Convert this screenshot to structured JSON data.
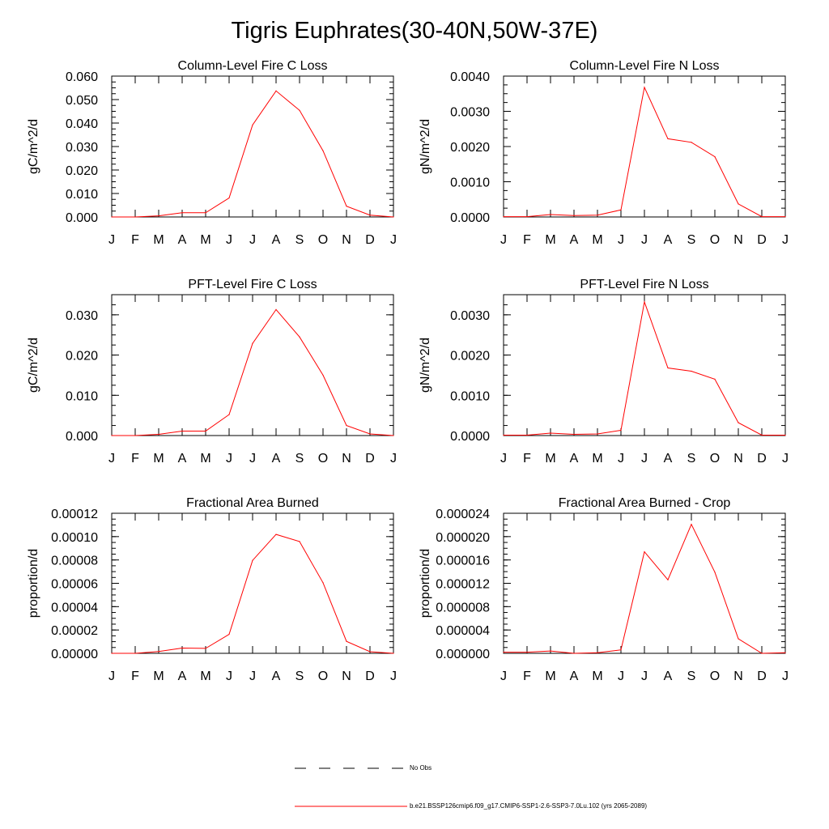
{
  "title": "Tigris Euphrates(30-40N,50W-37E)",
  "colors": {
    "series": "#ff0000",
    "axis": "#000000",
    "obs": "#000000"
  },
  "legend": {
    "entries": [
      {
        "label": "No Obs",
        "style": "dashed"
      },
      {
        "label": "b.e21.BSSP126cmip6.f09_g17.CMIP6-SSP1-2.6-SSP3-7.0Lu.102 (yrs 2065-2089)",
        "style": "solid"
      }
    ]
  },
  "chart_data": [
    {
      "type": "line",
      "title": "Column-Level Fire C Loss",
      "ylabel": "gC/m^2/d",
      "categories": [
        "J",
        "F",
        "M",
        "A",
        "M",
        "J",
        "J",
        "A",
        "S",
        "O",
        "N",
        "D",
        "J"
      ],
      "ylim": [
        0,
        0.06
      ],
      "yticks": [
        "0.000",
        "0.010",
        "0.020",
        "0.030",
        "0.040",
        "0.050",
        "0.060"
      ],
      "yminor_per_major": 4,
      "series": [
        {
          "values": [
            0.0,
            0.0,
            0.0005,
            0.0018,
            0.0018,
            0.0081,
            0.0392,
            0.0537,
            0.0454,
            0.0282,
            0.0046,
            0.0008,
            0.0
          ]
        }
      ]
    },
    {
      "type": "line",
      "title": "Column-Level Fire N Loss",
      "ylabel": "gN/m^2/d",
      "categories": [
        "J",
        "F",
        "M",
        "A",
        "M",
        "J",
        "J",
        "A",
        "S",
        "O",
        "N",
        "D",
        "J"
      ],
      "ylim": [
        0,
        0.004
      ],
      "yticks": [
        "0.0000",
        "0.0010",
        "0.0020",
        "0.0030",
        "0.0040"
      ],
      "yminor_per_major": 4,
      "series": [
        {
          "values": [
            1e-05,
            1e-05,
            7e-05,
            4e-05,
            5e-05,
            0.0002,
            0.00368,
            0.00222,
            0.00212,
            0.00171,
            0.00037,
            1e-05,
            1e-05
          ]
        }
      ]
    },
    {
      "type": "line",
      "title": "PFT-Level Fire C Loss",
      "ylabel": "gC/m^2/d",
      "categories": [
        "J",
        "F",
        "M",
        "A",
        "M",
        "J",
        "J",
        "A",
        "S",
        "O",
        "N",
        "D",
        "J"
      ],
      "ylim": [
        0,
        0.035
      ],
      "yticks": [
        "0.000",
        "0.010",
        "0.020",
        "0.030"
      ],
      "yminor_per_major": 4,
      "series": [
        {
          "values": [
            0.0,
            0.0,
            0.0003,
            0.0011,
            0.0011,
            0.0052,
            0.0229,
            0.0313,
            0.0245,
            0.015,
            0.0025,
            0.0004,
            0.0
          ]
        }
      ]
    },
    {
      "type": "line",
      "title": "PFT-Level Fire N Loss",
      "ylabel": "gN/m^2/d",
      "categories": [
        "J",
        "F",
        "M",
        "A",
        "M",
        "J",
        "J",
        "A",
        "S",
        "O",
        "N",
        "D",
        "J"
      ],
      "ylim": [
        0,
        0.0035
      ],
      "yticks": [
        "0.0000",
        "0.0010",
        "0.0020",
        "0.0030"
      ],
      "yminor_per_major": 4,
      "series": [
        {
          "values": [
            1e-05,
            1e-05,
            6e-05,
            3e-05,
            4e-05,
            0.00013,
            0.00332,
            0.00168,
            0.0016,
            0.0014,
            0.00032,
            1e-05,
            1e-05
          ]
        }
      ]
    },
    {
      "type": "line",
      "title": "Fractional Area Burned",
      "ylabel": "proportion/d",
      "categories": [
        "J",
        "F",
        "M",
        "A",
        "M",
        "J",
        "J",
        "A",
        "S",
        "O",
        "N",
        "D",
        "J"
      ],
      "ylim": [
        0,
        0.00012
      ],
      "yticks": [
        "0.00000",
        "0.00002",
        "0.00004",
        "0.00006",
        "0.00008",
        "0.00010",
        "0.00012"
      ],
      "yminor_per_major": 4,
      "series": [
        {
          "values": [
            0.0,
            0.0,
            1.6e-06,
            4.5e-06,
            4.2e-06,
            1.63e-05,
            7.96e-05,
            0.0001019,
            9.58e-05,
            6.05e-05,
            1.03e-05,
            1.4e-06,
            0.0
          ]
        }
      ]
    },
    {
      "type": "line",
      "title": "Fractional Area Burned - Crop",
      "ylabel": "proportion/d",
      "categories": [
        "J",
        "F",
        "M",
        "A",
        "M",
        "J",
        "J",
        "A",
        "S",
        "O",
        "N",
        "D",
        "J"
      ],
      "ylim": [
        0,
        2.4e-05
      ],
      "yticks": [
        "0.000000",
        "0.000004",
        "0.000008",
        "0.000012",
        "0.000016",
        "0.000020",
        "0.000024"
      ],
      "yminor_per_major": 4,
      "series": [
        {
          "values": [
            2e-07,
            2e-07,
            4e-07,
            0.0,
            1e-07,
            6e-07,
            1.74e-05,
            1.26e-05,
            2.21e-05,
            1.39e-05,
            2.5e-06,
            0.0,
            1e-07
          ]
        }
      ]
    }
  ]
}
